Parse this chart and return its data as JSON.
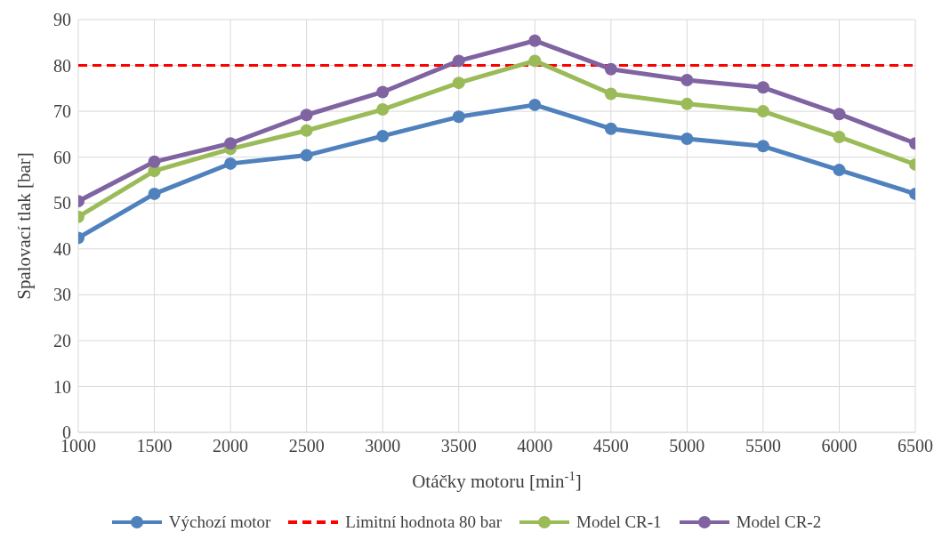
{
  "chart_data": {
    "type": "line",
    "xlabel": "Otáčky motoru [min$^{-1}$]",
    "ylabel": "Spalovací tlak [bar]",
    "x": [
      1000,
      1500,
      2000,
      2500,
      3000,
      3500,
      4000,
      4500,
      5000,
      5500,
      6000,
      6500
    ],
    "series": [
      {
        "name": "Výchozí motor",
        "color": "#4f81bd",
        "values": [
          42.4,
          52,
          58.6,
          60.4,
          64.6,
          68.8,
          71.4,
          66.2,
          64,
          62.4,
          57.2,
          52
        ]
      },
      {
        "name": "Limitní hodnota 80 bar",
        "color": "#ff0000",
        "marker": "none",
        "line_style": "dashed",
        "values": [
          80,
          80,
          80,
          80,
          80,
          80,
          80,
          80,
          80,
          80,
          80,
          80
        ]
      },
      {
        "name": "Model CR-1",
        "color": "#9bbb59",
        "values": [
          47,
          57,
          61.8,
          65.8,
          70.4,
          76.2,
          81,
          73.8,
          71.6,
          70,
          64.4,
          58.4
        ]
      },
      {
        "name": "Model CR-2",
        "color": "#8064a2",
        "values": [
          50.4,
          59,
          63,
          69.2,
          74.2,
          81,
          85.4,
          79.2,
          76.8,
          75.2,
          69.4,
          63
        ]
      }
    ],
    "xlim": [
      1000,
      6500
    ],
    "xticks": [
      1000,
      1500,
      2000,
      2500,
      3000,
      3500,
      4000,
      4500,
      5000,
      5500,
      6000,
      6500
    ],
    "ylim": [
      0,
      90
    ],
    "yticks": [
      0,
      10,
      20,
      30,
      40,
      50,
      60,
      70,
      80,
      90
    ],
    "grid": true,
    "legend": "bottom",
    "marker": "circle",
    "line_style": "solid"
  }
}
